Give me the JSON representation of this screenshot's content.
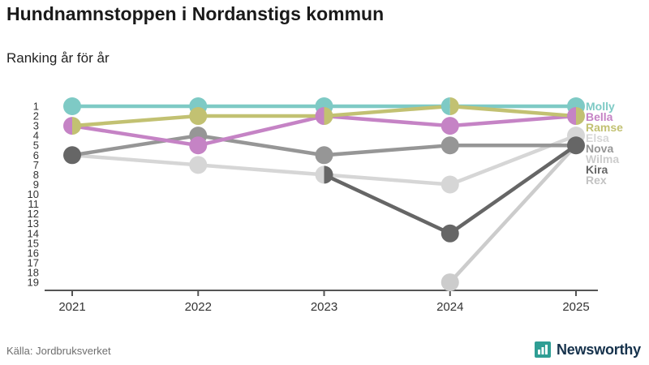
{
  "header": {
    "title": "Hundnamnstoppen i Nordanstigs kommun",
    "subtitle": "Ranking år för år"
  },
  "footer": {
    "source": "Källa: Jordbruksverket",
    "brand": "Newsworthy",
    "brand_icon_color": "#2f9e94",
    "brand_text_color": "#16324c"
  },
  "chart_data": {
    "type": "line",
    "title": "Hundnamnstoppen i Nordanstigs kommun",
    "subtitle": "Ranking år för år",
    "xlabel": "",
    "ylabel": "",
    "x": [
      2021,
      2022,
      2023,
      2024,
      2025
    ],
    "y_axis": {
      "min": 1,
      "max": 19,
      "inverted": true,
      "ticks": [
        1,
        2,
        3,
        4,
        5,
        6,
        7,
        8,
        9,
        10,
        11,
        12,
        13,
        14,
        15,
        16,
        17,
        18,
        19
      ]
    },
    "legend_position": "right",
    "axis_color": "#555555",
    "tick_label_color": "#333333",
    "series": [
      {
        "name": "Elsa",
        "color": "#d6d6d6",
        "legend_index": 3,
        "values": [
          6,
          7,
          8,
          9,
          4
        ]
      },
      {
        "name": "Nova",
        "color": "#969696",
        "legend_index": 4,
        "values": [
          6,
          4,
          6,
          5,
          5
        ]
      },
      {
        "name": "Wilma",
        "color": "#cccccc",
        "legend_index": 5,
        "values": [
          null,
          null,
          null,
          19,
          5
        ]
      },
      {
        "name": "Rex",
        "color": "#c3c3c3",
        "legend_index": 7,
        "values": [
          null,
          null,
          null,
          null,
          5
        ]
      },
      {
        "name": "Kira",
        "color": "#666666",
        "legend_index": 6,
        "values": [
          6,
          null,
          8,
          14,
          5
        ]
      },
      {
        "name": "Molly",
        "color": "#7ecac5",
        "legend_index": 0,
        "values": [
          1,
          1,
          1,
          1,
          1
        ]
      },
      {
        "name": "Bella",
        "color": "#c583c5",
        "legend_index": 1,
        "values": [
          3,
          5,
          2,
          3,
          2
        ]
      },
      {
        "name": "Ramse",
        "color": "#c2c172",
        "legend_index": 2,
        "values": [
          3,
          2,
          2,
          1,
          2
        ]
      }
    ]
  }
}
